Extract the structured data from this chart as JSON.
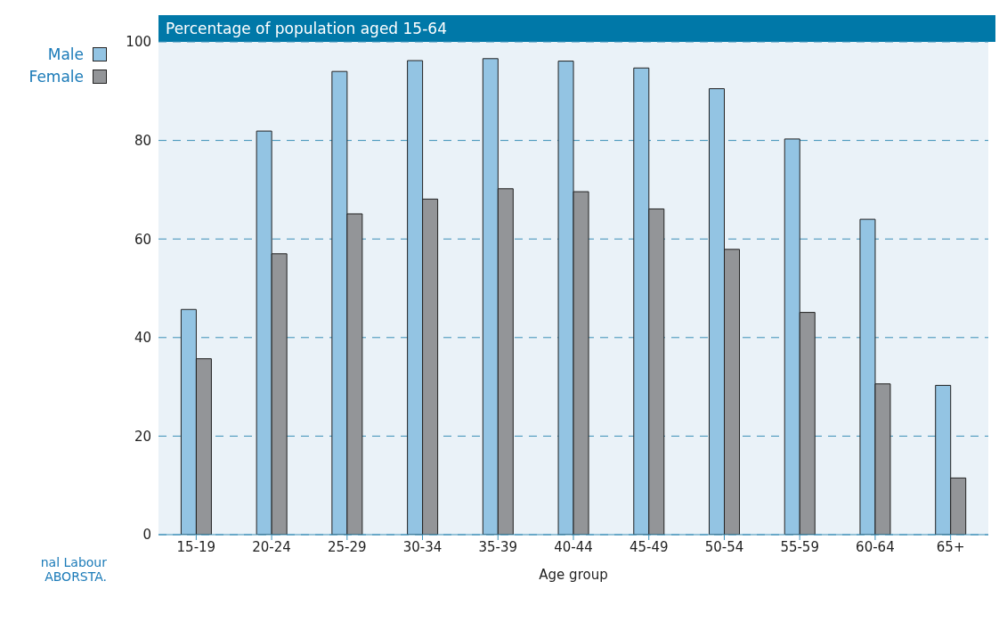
{
  "chart_data": {
    "type": "bar",
    "title": "Percentage of population aged 15-64",
    "xlabel": "Age group",
    "categories": [
      "15-19",
      "20-24",
      "25-29",
      "30-34",
      "35-39",
      "40-44",
      "45-49",
      "50-54",
      "55-59",
      "60-64",
      "65+"
    ],
    "series": [
      {
        "name": "Male",
        "color": "#93c4e3",
        "values": [
          45.7,
          81.9,
          94.0,
          96.2,
          96.6,
          96.1,
          94.7,
          90.5,
          80.3,
          64.0,
          30.3
        ]
      },
      {
        "name": "Female",
        "color": "#939598",
        "values": [
          35.7,
          57.0,
          65.1,
          68.1,
          70.2,
          69.6,
          66.1,
          57.9,
          45.1,
          30.6,
          11.5
        ]
      }
    ],
    "ylim": [
      0,
      100
    ],
    "yticks": [
      0,
      20,
      40,
      60,
      80,
      100
    ],
    "grid": "y",
    "legend": "top left",
    "annotations": [
      "nal Labour\nABORSTA."
    ]
  }
}
